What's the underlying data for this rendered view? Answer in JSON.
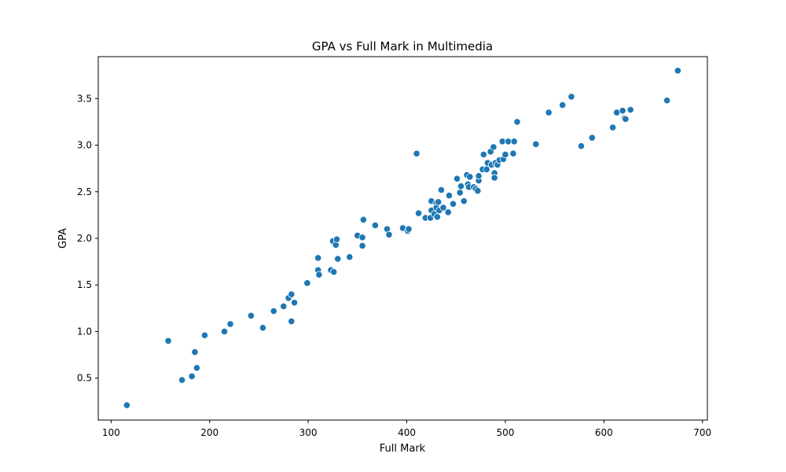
{
  "chart_data": {
    "type": "scatter",
    "title": "GPA vs Full Mark in Multimedia",
    "xlabel": "Full Mark",
    "ylabel": "GPA",
    "xlim": [
      87,
      705
    ],
    "ylim": [
      0.05,
      3.95
    ],
    "xticks": [
      100,
      200,
      300,
      400,
      500,
      600,
      700
    ],
    "yticks": [
      0.5,
      1.0,
      1.5,
      2.0,
      2.5,
      3.0,
      3.5
    ],
    "xtick_labels": [
      "100",
      "200",
      "300",
      "400",
      "500",
      "600",
      "700"
    ],
    "ytick_labels": [
      "0.5",
      "1.0",
      "1.5",
      "2.0",
      "2.5",
      "3.0",
      "3.5"
    ],
    "grid": false,
    "marker_color": "#1f77b4",
    "marker_edge_color": "#ffffff",
    "points": [
      [
        116,
        0.21
      ],
      [
        158,
        0.9
      ],
      [
        172,
        0.48
      ],
      [
        182,
        0.52
      ],
      [
        185,
        0.78
      ],
      [
        187,
        0.61
      ],
      [
        195,
        0.96
      ],
      [
        215,
        1.0
      ],
      [
        221,
        1.08
      ],
      [
        242,
        1.17
      ],
      [
        254,
        1.04
      ],
      [
        265,
        1.22
      ],
      [
        275,
        1.27
      ],
      [
        280,
        1.36
      ],
      [
        283,
        1.4
      ],
      [
        283,
        1.11
      ],
      [
        286,
        1.31
      ],
      [
        299,
        1.52
      ],
      [
        310,
        1.66
      ],
      [
        310,
        1.79
      ],
      [
        311,
        1.61
      ],
      [
        323,
        1.66
      ],
      [
        325,
        1.97
      ],
      [
        326,
        1.64
      ],
      [
        328,
        1.93
      ],
      [
        329,
        1.99
      ],
      [
        330,
        1.78
      ],
      [
        342,
        1.8
      ],
      [
        350,
        2.03
      ],
      [
        355,
        2.01
      ],
      [
        355,
        1.92
      ],
      [
        356,
        2.2
      ],
      [
        368,
        2.14
      ],
      [
        380,
        2.1
      ],
      [
        382,
        2.04
      ],
      [
        396,
        2.11
      ],
      [
        401,
        2.08
      ],
      [
        402,
        2.1
      ],
      [
        410,
        2.91
      ],
      [
        412,
        2.27
      ],
      [
        419,
        2.22
      ],
      [
        424,
        2.22
      ],
      [
        425,
        2.4
      ],
      [
        425,
        2.3
      ],
      [
        428,
        2.26
      ],
      [
        430,
        2.38
      ],
      [
        430,
        2.33
      ],
      [
        431,
        2.23
      ],
      [
        432,
        2.39
      ],
      [
        433,
        2.3
      ],
      [
        435,
        2.52
      ],
      [
        437,
        2.33
      ],
      [
        442,
        2.28
      ],
      [
        443,
        2.46
      ],
      [
        447,
        2.37
      ],
      [
        451,
        2.64
      ],
      [
        454,
        2.49
      ],
      [
        455,
        2.56
      ],
      [
        458,
        2.4
      ],
      [
        461,
        2.68
      ],
      [
        462,
        2.58
      ],
      [
        463,
        2.55
      ],
      [
        464,
        2.66
      ],
      [
        468,
        2.55
      ],
      [
        470,
        2.53
      ],
      [
        472,
        2.51
      ],
      [
        473,
        2.62
      ],
      [
        473,
        2.67
      ],
      [
        477,
        2.74
      ],
      [
        478,
        2.9
      ],
      [
        481,
        2.74
      ],
      [
        482,
        2.81
      ],
      [
        485,
        2.93
      ],
      [
        486,
        2.79
      ],
      [
        488,
        2.98
      ],
      [
        489,
        2.7
      ],
      [
        489,
        2.65
      ],
      [
        490,
        2.81
      ],
      [
        492,
        2.79
      ],
      [
        494,
        2.84
      ],
      [
        497,
        3.04
      ],
      [
        498,
        2.85
      ],
      [
        500,
        2.9
      ],
      [
        503,
        3.04
      ],
      [
        508,
        2.91
      ],
      [
        509,
        3.04
      ],
      [
        512,
        3.25
      ],
      [
        531,
        3.01
      ],
      [
        544,
        3.35
      ],
      [
        558,
        3.43
      ],
      [
        567,
        3.52
      ],
      [
        577,
        2.99
      ],
      [
        588,
        3.08
      ],
      [
        609,
        3.19
      ],
      [
        613,
        3.35
      ],
      [
        619,
        3.37
      ],
      [
        621,
        3.29
      ],
      [
        622,
        3.28
      ],
      [
        627,
        3.38
      ],
      [
        664,
        3.48
      ],
      [
        675,
        3.8
      ]
    ]
  }
}
